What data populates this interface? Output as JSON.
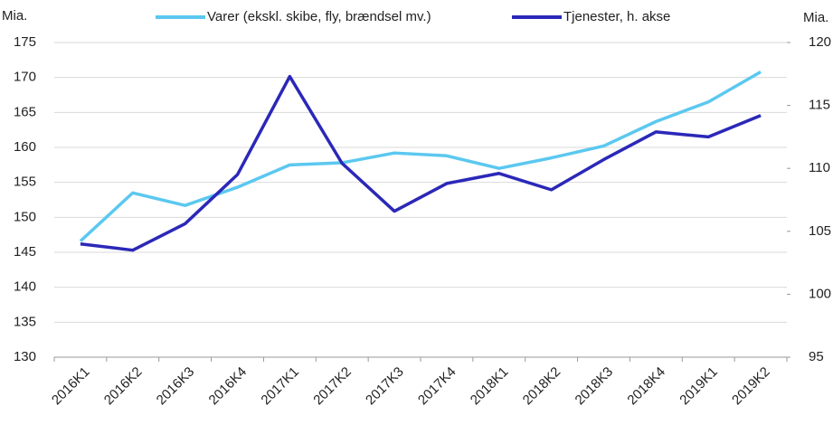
{
  "chart_data": {
    "type": "line",
    "y_label": "Mia.",
    "y2_label": "Mia.",
    "categories": [
      "2016K1",
      "2016K2",
      "2016K3",
      "2016K4",
      "2017K1",
      "2017K2",
      "2017K3",
      "2017K4",
      "2018K1",
      "2018K2",
      "2018K3",
      "2018K4",
      "2019K1",
      "2019K2"
    ],
    "series": [
      {
        "name": "Varer (ekskl. skibe, fly, brændsel mv.)",
        "color": "#5bc8f0",
        "values": [
          146.6,
          153.5,
          151.7,
          154.3,
          157.5,
          157.8,
          159.2,
          158.8,
          157.0,
          158.5,
          160.2,
          163.7,
          166.5,
          170.8
        ]
      },
      {
        "name": "Tjenester, h. akse",
        "color": "#2b28b8",
        "axis": "y2",
        "values": [
          104.0,
          103.5,
          105.6,
          109.5,
          117.3,
          110.4,
          106.6,
          108.8,
          109.6,
          108.3,
          110.7,
          112.9,
          112.5,
          114.2
        ]
      }
    ],
    "ylim": [
      130,
      175
    ],
    "yticks": [
      130,
      135,
      140,
      145,
      150,
      155,
      160,
      165,
      170,
      175
    ],
    "y2lim": [
      95,
      120
    ],
    "y2ticks": [
      95,
      100,
      105,
      110,
      115,
      120
    ],
    "grid": true,
    "legend": "top"
  }
}
